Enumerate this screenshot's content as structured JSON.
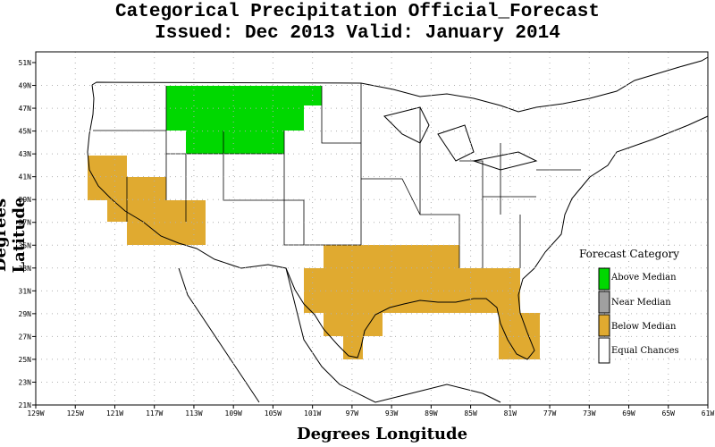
{
  "title": {
    "line1": "Categorical Precipitation Official_Forecast",
    "line2": "Issued: Dec 2013 Valid: January 2014"
  },
  "axes": {
    "ylabel": "Degrees Latitude",
    "xlabel": "Degrees Longitude",
    "lat_ticks": [
      "51N",
      "49N",
      "47N",
      "45N",
      "43N",
      "41N",
      "39N",
      "37N",
      "35N",
      "33N",
      "31N",
      "29N",
      "27N",
      "25N",
      "23N",
      "21N"
    ],
    "lon_ticks": [
      "129W",
      "125W",
      "121W",
      "117W",
      "113W",
      "109W",
      "105W",
      "101W",
      "97W",
      "93W",
      "89W",
      "85W",
      "81W",
      "77W",
      "73W",
      "69W",
      "65W",
      "61W"
    ]
  },
  "legend": {
    "title": "Forecast Category",
    "items": [
      {
        "label": "Above Median",
        "color": "#00d800"
      },
      {
        "label": "Near Median",
        "color": "#a0a0a0"
      },
      {
        "label": "Below Median",
        "color": "#e0aa30"
      },
      {
        "label": "Equal Chances",
        "color": "#ffffff"
      }
    ]
  },
  "colors": {
    "above": "#00d800",
    "below": "#e0aa30",
    "grid": "#b0b0b0"
  }
}
